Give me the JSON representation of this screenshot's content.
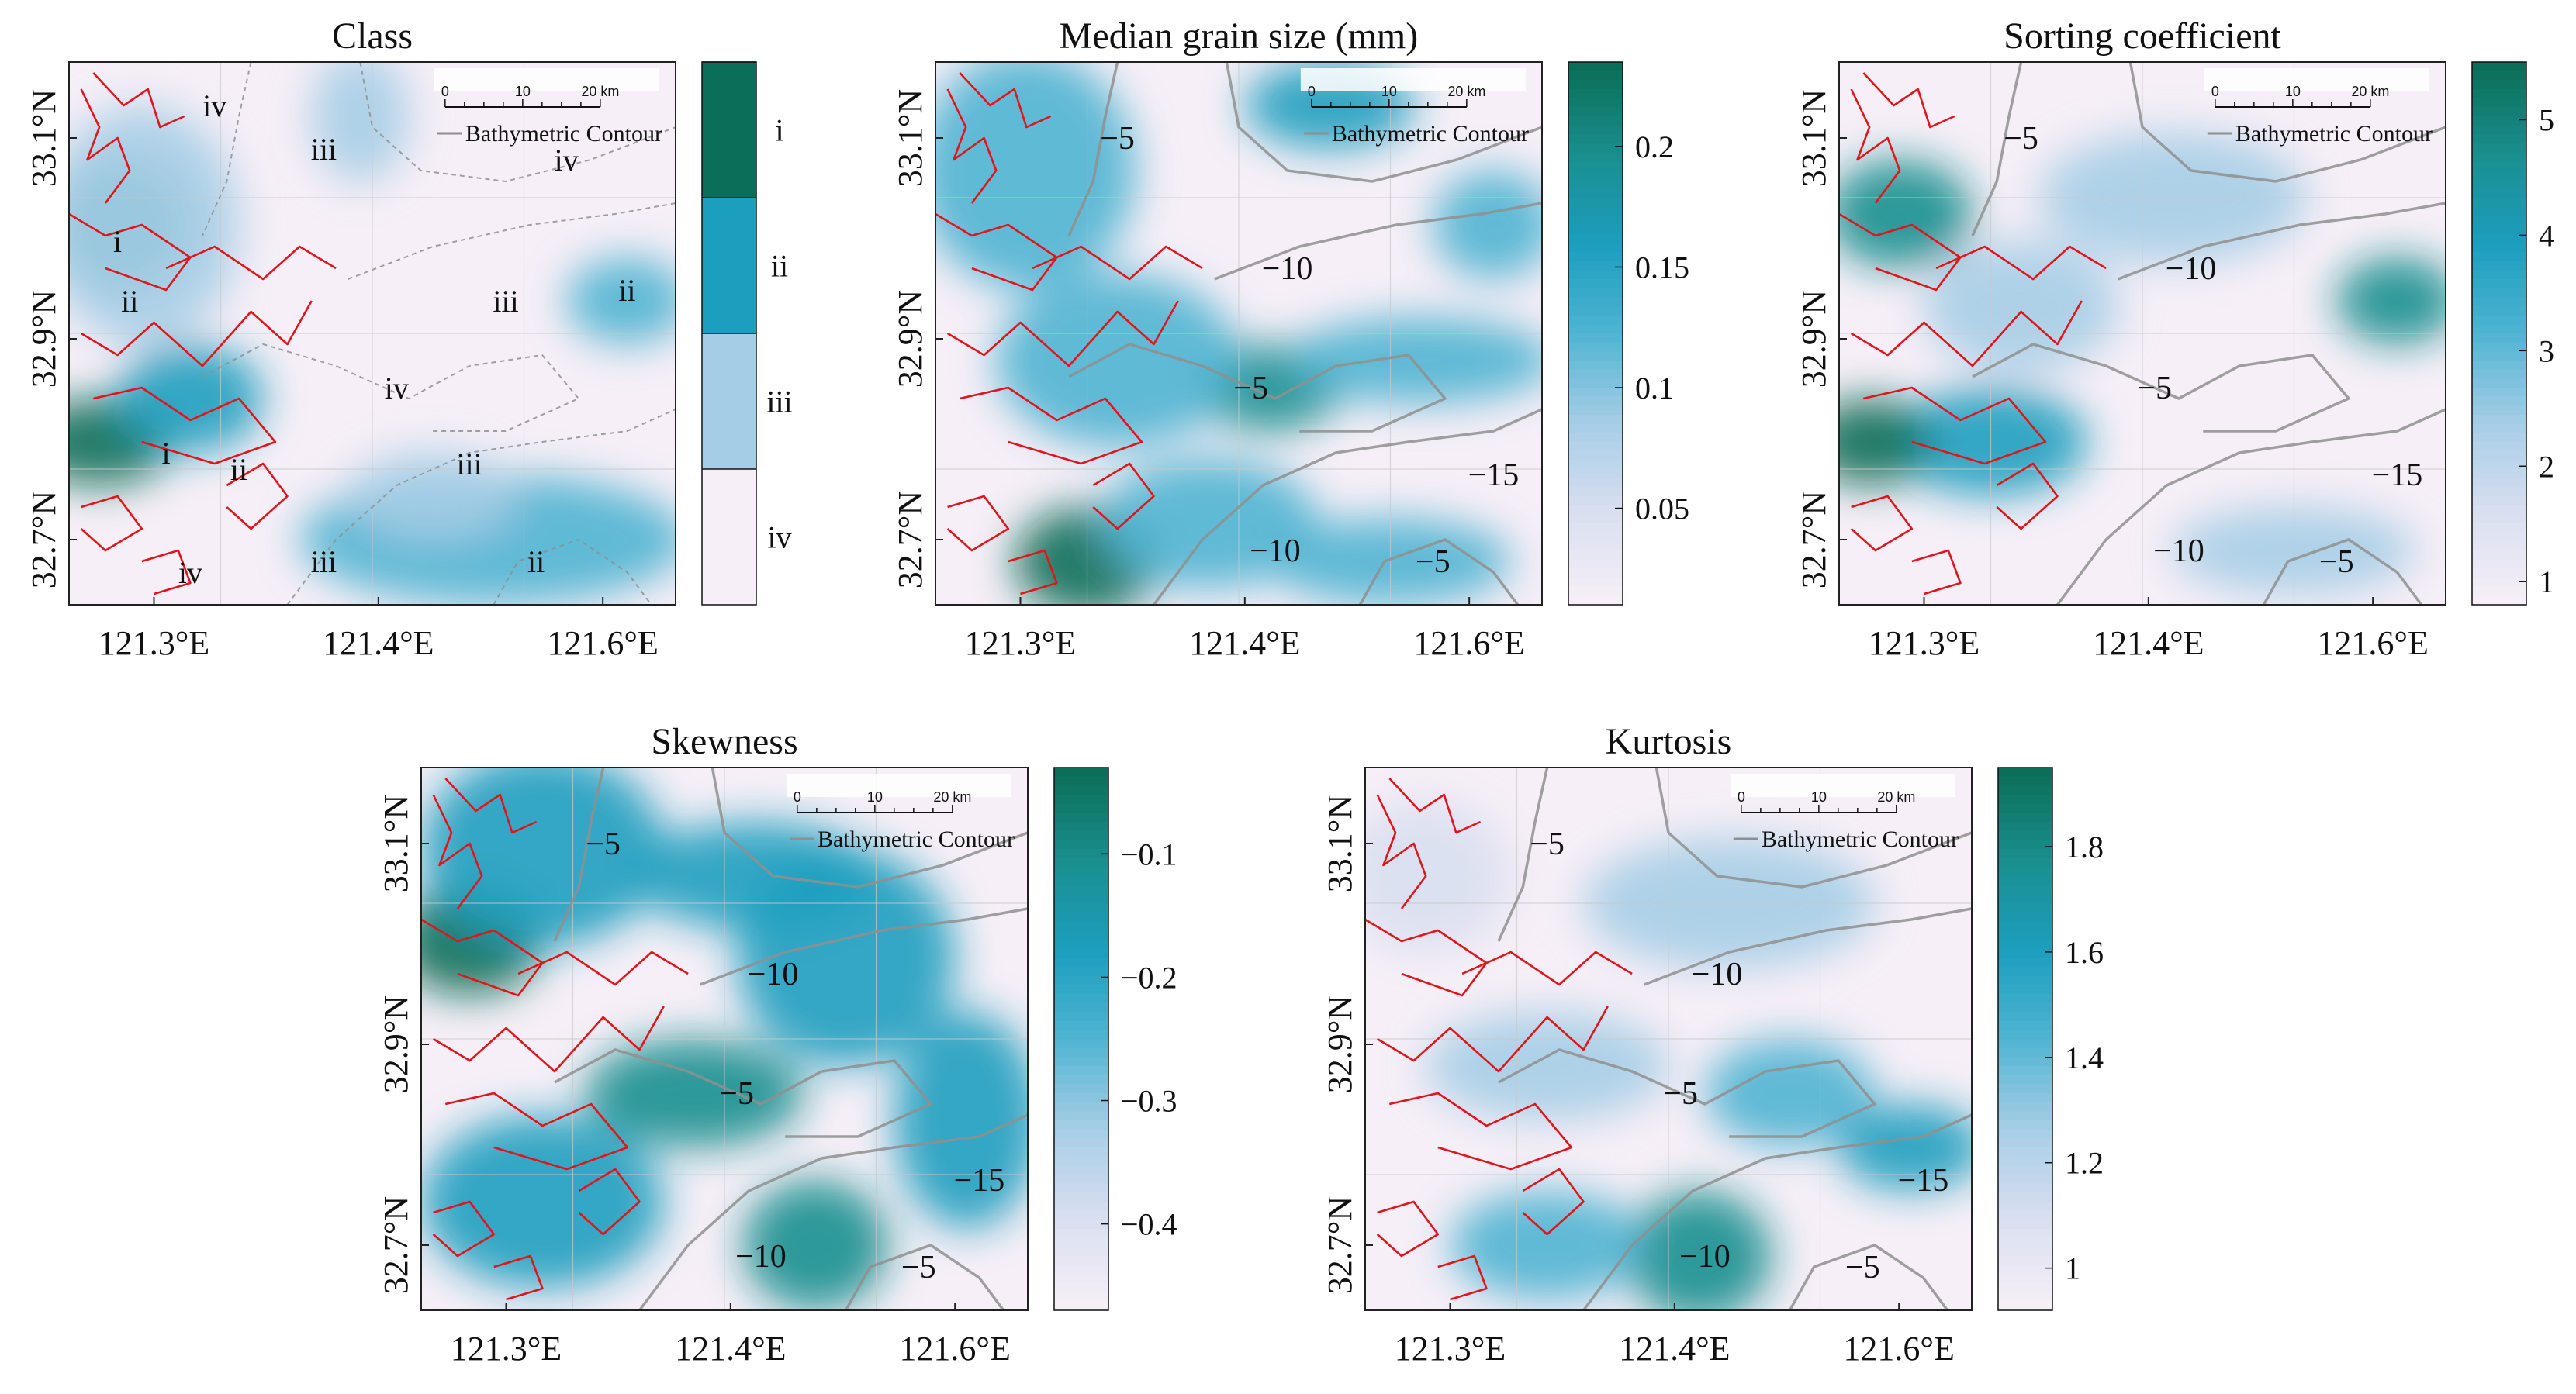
{
  "figure": {
    "scale_bar": {
      "ticks": [
        "0",
        "10",
        "20 km"
      ],
      "legend_label": "Bathymetric Contour"
    },
    "x_axis_ticks": [
      "121.3°E",
      "121.4°E",
      "121.6°E"
    ],
    "y_axis_ticks": [
      "33.1°N",
      "32.9°N",
      "32.7°N"
    ]
  },
  "colors": {
    "ramp": [
      "#f6eff7",
      "#d9dff0",
      "#a6cde6",
      "#4fb4d2",
      "#1c9ebf",
      "#1a8f8f",
      "#0b6e58"
    ],
    "shoreline": "#e0151b",
    "contour": "#8f8f8f",
    "frame": "#222222"
  },
  "chart_data": [
    {
      "type": "heatmap",
      "title": "Class",
      "colorbar": {
        "kind": "categorical",
        "labels": [
          "i",
          "ii",
          "iii",
          "iv"
        ]
      },
      "map_labels": [
        "iv",
        "iii",
        "iv",
        "i",
        "ii",
        "iii",
        "ii",
        "iv",
        "i",
        "ii",
        "iii",
        "iii",
        "ii",
        "iv"
      ],
      "legend": "Bathymetric Contour"
    },
    {
      "type": "heatmap",
      "title": "Median grain size (mm)",
      "colorbar": {
        "kind": "continuous",
        "range": [
          0.01,
          0.235
        ],
        "ticks": [
          "0.2",
          "0.15",
          "0.1",
          "0.05"
        ],
        "tick_values": [
          0.2,
          0.15,
          0.1,
          0.05
        ]
      },
      "contour_labels": [
        "−5",
        "−10",
        "−5",
        "−15",
        "−10",
        "−5"
      ],
      "legend": "Bathymetric Contour"
    },
    {
      "type": "heatmap",
      "title": "Sorting coefficient",
      "colorbar": {
        "kind": "continuous",
        "range": [
          0.8,
          5.5
        ],
        "ticks": [
          "5",
          "4",
          "3",
          "2",
          "1"
        ],
        "tick_values": [
          5,
          4,
          3,
          2,
          1
        ]
      },
      "contour_labels": [
        "−5",
        "−10",
        "−5",
        "−15",
        "−10",
        "−5"
      ],
      "legend": "Bathymetric Contour"
    },
    {
      "type": "heatmap",
      "title": "Skewness",
      "colorbar": {
        "kind": "continuous",
        "range": [
          -0.47,
          -0.03
        ],
        "ticks": [
          "−0.1",
          "−0.2",
          "−0.3",
          "−0.4"
        ],
        "tick_values": [
          -0.1,
          -0.2,
          -0.3,
          -0.4
        ]
      },
      "contour_labels": [
        "−5",
        "−10",
        "−5",
        "−15",
        "−10",
        "−5"
      ],
      "legend": "Bathymetric Contour"
    },
    {
      "type": "heatmap",
      "title": "Kurtosis",
      "colorbar": {
        "kind": "continuous",
        "range": [
          0.92,
          1.95
        ],
        "ticks": [
          "1.8",
          "1.6",
          "1.4",
          "1.2",
          "1"
        ],
        "tick_values": [
          1.8,
          1.6,
          1.4,
          1.2,
          1.0
        ]
      },
      "contour_labels": [
        "−5",
        "−10",
        "−5",
        "−15",
        "−10",
        "−5"
      ],
      "legend": "Bathymetric Contour"
    }
  ]
}
